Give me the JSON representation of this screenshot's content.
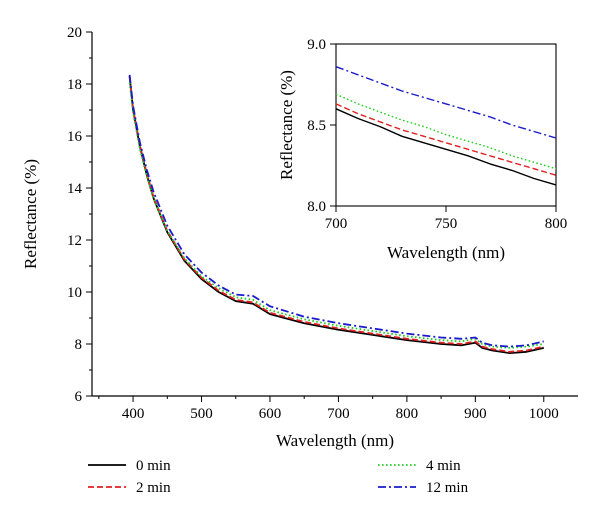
{
  "chart_data": [
    {
      "type": "line",
      "xlabel": "Wavelength (nm)",
      "ylabel": "Reflectance (%)",
      "xlim": [
        340,
        1050
      ],
      "ylim": [
        6,
        20
      ],
      "xticks": [
        400,
        500,
        600,
        700,
        800,
        900,
        1000
      ],
      "yticks": [
        6,
        8,
        10,
        12,
        14,
        16,
        18,
        20
      ],
      "series": [
        {
          "name": "0 min",
          "color": "#000000",
          "dash": "solid",
          "x": [
            395,
            400,
            410,
            420,
            430,
            450,
            475,
            500,
            525,
            550,
            575,
            600,
            650,
            700,
            750,
            800,
            850,
            880,
            900,
            910,
            925,
            950,
            975,
            1000
          ],
          "y": [
            18.3,
            17.0,
            15.6,
            14.5,
            13.6,
            12.3,
            11.2,
            10.5,
            10.0,
            9.65,
            9.55,
            9.15,
            8.8,
            8.55,
            8.35,
            8.15,
            8.0,
            7.95,
            8.05,
            7.85,
            7.75,
            7.65,
            7.7,
            7.85
          ]
        },
        {
          "name": "2 min",
          "color": "#e02020",
          "dash": "dashed",
          "x": [
            395,
            400,
            410,
            420,
            430,
            450,
            475,
            500,
            525,
            550,
            575,
            600,
            650,
            700,
            750,
            800,
            850,
            880,
            900,
            910,
            925,
            950,
            975,
            1000
          ],
          "y": [
            18.3,
            17.05,
            15.65,
            14.55,
            13.65,
            12.35,
            11.25,
            10.55,
            10.05,
            9.7,
            9.6,
            9.2,
            8.85,
            8.6,
            8.4,
            8.2,
            8.05,
            8.0,
            8.1,
            7.9,
            7.8,
            7.7,
            7.75,
            7.9
          ]
        },
        {
          "name": "4 min",
          "color": "#22cc22",
          "dash": "dotted",
          "x": [
            395,
            400,
            410,
            420,
            430,
            450,
            475,
            500,
            525,
            550,
            575,
            600,
            650,
            700,
            750,
            800,
            850,
            880,
            900,
            910,
            925,
            950,
            975,
            1000
          ],
          "y": [
            18.05,
            16.9,
            15.5,
            14.45,
            13.6,
            12.35,
            11.3,
            10.6,
            10.15,
            9.8,
            9.7,
            9.3,
            8.95,
            8.7,
            8.5,
            8.3,
            8.15,
            8.1,
            8.2,
            8.0,
            7.9,
            7.85,
            7.9,
            8.0
          ]
        },
        {
          "name": "12 min",
          "color": "#1a1acc",
          "dash": "dashdot",
          "x": [
            395,
            400,
            410,
            420,
            430,
            450,
            475,
            500,
            525,
            550,
            575,
            600,
            650,
            700,
            750,
            800,
            850,
            880,
            900,
            910,
            925,
            950,
            975,
            1000
          ],
          "y": [
            18.35,
            17.15,
            15.75,
            14.7,
            13.85,
            12.55,
            11.45,
            10.75,
            10.25,
            9.9,
            9.85,
            9.45,
            9.05,
            8.8,
            8.6,
            8.4,
            8.25,
            8.2,
            8.25,
            8.05,
            7.95,
            7.9,
            7.95,
            8.1
          ]
        }
      ]
    },
    {
      "type": "line",
      "inset": true,
      "xlabel": "Wavelength (nm)",
      "ylabel": "Reflectance (%)",
      "xlim": [
        700,
        800
      ],
      "ylim": [
        8.0,
        9.0
      ],
      "xticks": [
        700,
        750,
        800
      ],
      "yticks": [
        8.0,
        8.5,
        9.0
      ],
      "series": [
        {
          "name": "0 min",
          "color": "#000000",
          "dash": "solid",
          "x": [
            700,
            710,
            720,
            730,
            740,
            750,
            760,
            770,
            780,
            790,
            800
          ],
          "y": [
            8.6,
            8.54,
            8.49,
            8.43,
            8.39,
            8.35,
            8.31,
            8.26,
            8.22,
            8.17,
            8.13
          ]
        },
        {
          "name": "2 min",
          "color": "#e02020",
          "dash": "dashed",
          "x": [
            700,
            710,
            720,
            730,
            740,
            750,
            760,
            770,
            780,
            790,
            800
          ],
          "y": [
            8.63,
            8.57,
            8.52,
            8.47,
            8.43,
            8.39,
            8.35,
            8.31,
            8.27,
            8.23,
            8.19
          ]
        },
        {
          "name": "4 min",
          "color": "#22cc22",
          "dash": "dotted",
          "x": [
            700,
            710,
            720,
            730,
            740,
            750,
            760,
            770,
            780,
            790,
            800
          ],
          "y": [
            8.69,
            8.63,
            8.58,
            8.53,
            8.49,
            8.44,
            8.4,
            8.36,
            8.31,
            8.27,
            8.23
          ]
        },
        {
          "name": "12 min",
          "color": "#1a1acc",
          "dash": "dashdot",
          "x": [
            700,
            710,
            720,
            730,
            740,
            750,
            760,
            770,
            780,
            790,
            800
          ],
          "y": [
            8.86,
            8.81,
            8.76,
            8.71,
            8.67,
            8.63,
            8.59,
            8.55,
            8.5,
            8.46,
            8.42
          ]
        }
      ]
    }
  ],
  "legend": [
    {
      "label": "0 min",
      "color": "#000000",
      "dash": "solid"
    },
    {
      "label": "2 min",
      "color": "#e02020",
      "dash": "dashed"
    },
    {
      "label": "4 min",
      "color": "#22cc22",
      "dash": "dotted"
    },
    {
      "label": "12 min",
      "color": "#1a1acc",
      "dash": "dashdot"
    }
  ]
}
